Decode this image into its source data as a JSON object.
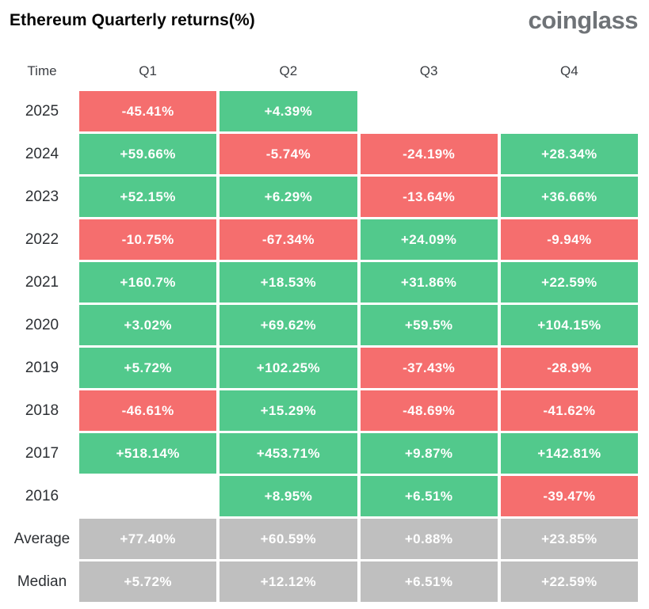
{
  "header": {
    "title": "Ethereum Quarterly returns(%)",
    "logo": "coinglass"
  },
  "table": {
    "columns": [
      "Time",
      "Q1",
      "Q2",
      "Q3",
      "Q4"
    ],
    "rows": [
      {
        "label": "2025",
        "cells": [
          {
            "text": "-45.41%",
            "type": "negative"
          },
          {
            "text": "+4.39%",
            "type": "positive"
          },
          {
            "text": "",
            "type": "empty"
          },
          {
            "text": "",
            "type": "empty"
          }
        ]
      },
      {
        "label": "2024",
        "cells": [
          {
            "text": "+59.66%",
            "type": "positive"
          },
          {
            "text": "-5.74%",
            "type": "negative"
          },
          {
            "text": "-24.19%",
            "type": "negative"
          },
          {
            "text": "+28.34%",
            "type": "positive"
          }
        ]
      },
      {
        "label": "2023",
        "cells": [
          {
            "text": "+52.15%",
            "type": "positive"
          },
          {
            "text": "+6.29%",
            "type": "positive"
          },
          {
            "text": "-13.64%",
            "type": "negative"
          },
          {
            "text": "+36.66%",
            "type": "positive"
          }
        ]
      },
      {
        "label": "2022",
        "cells": [
          {
            "text": "-10.75%",
            "type": "negative"
          },
          {
            "text": "-67.34%",
            "type": "negative"
          },
          {
            "text": "+24.09%",
            "type": "positive"
          },
          {
            "text": "-9.94%",
            "type": "negative"
          }
        ]
      },
      {
        "label": "2021",
        "cells": [
          {
            "text": "+160.7%",
            "type": "positive"
          },
          {
            "text": "+18.53%",
            "type": "positive"
          },
          {
            "text": "+31.86%",
            "type": "positive"
          },
          {
            "text": "+22.59%",
            "type": "positive"
          }
        ]
      },
      {
        "label": "2020",
        "cells": [
          {
            "text": "+3.02%",
            "type": "positive"
          },
          {
            "text": "+69.62%",
            "type": "positive"
          },
          {
            "text": "+59.5%",
            "type": "positive"
          },
          {
            "text": "+104.15%",
            "type": "positive"
          }
        ]
      },
      {
        "label": "2019",
        "cells": [
          {
            "text": "+5.72%",
            "type": "positive"
          },
          {
            "text": "+102.25%",
            "type": "positive"
          },
          {
            "text": "-37.43%",
            "type": "negative"
          },
          {
            "text": "-28.9%",
            "type": "negative"
          }
        ]
      },
      {
        "label": "2018",
        "cells": [
          {
            "text": "-46.61%",
            "type": "negative"
          },
          {
            "text": "+15.29%",
            "type": "positive"
          },
          {
            "text": "-48.69%",
            "type": "negative"
          },
          {
            "text": "-41.62%",
            "type": "negative"
          }
        ]
      },
      {
        "label": "2017",
        "cells": [
          {
            "text": "+518.14%",
            "type": "positive"
          },
          {
            "text": "+453.71%",
            "type": "positive"
          },
          {
            "text": "+9.87%",
            "type": "positive"
          },
          {
            "text": "+142.81%",
            "type": "positive"
          }
        ]
      },
      {
        "label": "2016",
        "cells": [
          {
            "text": "",
            "type": "empty"
          },
          {
            "text": "+8.95%",
            "type": "positive"
          },
          {
            "text": "+6.51%",
            "type": "positive"
          },
          {
            "text": "-39.47%",
            "type": "negative"
          }
        ]
      },
      {
        "label": "Average",
        "cells": [
          {
            "text": "+77.40%",
            "type": "neutral"
          },
          {
            "text": "+60.59%",
            "type": "neutral"
          },
          {
            "text": "+0.88%",
            "type": "neutral"
          },
          {
            "text": "+23.85%",
            "type": "neutral"
          }
        ]
      },
      {
        "label": "Median",
        "cells": [
          {
            "text": "+5.72%",
            "type": "neutral"
          },
          {
            "text": "+12.12%",
            "type": "neutral"
          },
          {
            "text": "+6.51%",
            "type": "neutral"
          },
          {
            "text": "+22.59%",
            "type": "neutral"
          }
        ]
      }
    ]
  },
  "colors": {
    "positive": "#52c98c",
    "negative": "#f56e6e",
    "neutral": "#bfbfbf",
    "cell_text": "#ffffff"
  },
  "chart_data": {
    "type": "heatmap",
    "title": "Ethereum Quarterly returns(%)",
    "columns": [
      "Q1",
      "Q2",
      "Q3",
      "Q4"
    ],
    "rows": [
      "2025",
      "2024",
      "2023",
      "2022",
      "2021",
      "2020",
      "2019",
      "2018",
      "2017",
      "2016",
      "Average",
      "Median"
    ],
    "values": [
      [
        -45.41,
        4.39,
        null,
        null
      ],
      [
        59.66,
        -5.74,
        -24.19,
        28.34
      ],
      [
        52.15,
        6.29,
        -13.64,
        36.66
      ],
      [
        -10.75,
        -67.34,
        24.09,
        -9.94
      ],
      [
        160.7,
        18.53,
        31.86,
        22.59
      ],
      [
        3.02,
        69.62,
        59.5,
        104.15
      ],
      [
        5.72,
        102.25,
        -37.43,
        -28.9
      ],
      [
        -46.61,
        15.29,
        -48.69,
        -41.62
      ],
      [
        518.14,
        453.71,
        9.87,
        142.81
      ],
      [
        null,
        8.95,
        6.51,
        -39.47
      ],
      [
        77.4,
        60.59,
        0.88,
        23.85
      ],
      [
        5.72,
        12.12,
        6.51,
        22.59
      ]
    ],
    "color_coding": "green = positive return, red = negative return, gray = summary rows (Average/Median)",
    "legend_position": "none",
    "grid": false
  }
}
